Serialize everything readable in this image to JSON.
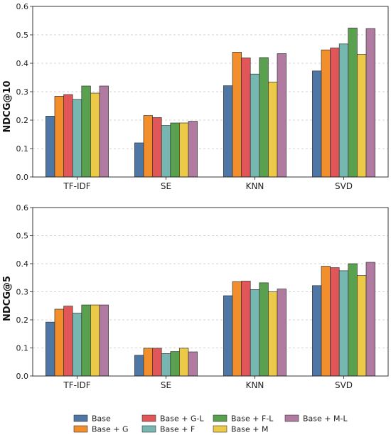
{
  "chart_data": [
    {
      "type": "bar",
      "ylabel": "NDCG@10",
      "xlabel": "",
      "ylim": [
        0,
        0.6
      ],
      "yticks": [
        0.0,
        0.1,
        0.2,
        0.3,
        0.4,
        0.5,
        0.6
      ],
      "grid": "y-dashed",
      "categories": [
        "TF-IDF",
        "SE",
        "KNN",
        "SVD"
      ],
      "series": [
        {
          "name": "Base",
          "color": "#4e77a6",
          "values": [
            0.214,
            0.12,
            0.321,
            0.373
          ]
        },
        {
          "name": "Base + G",
          "color": "#f28e2b",
          "values": [
            0.284,
            0.216,
            0.439,
            0.447
          ]
        },
        {
          "name": "Base + G-L",
          "color": "#e15759",
          "values": [
            0.29,
            0.209,
            0.419,
            0.454
          ]
        },
        {
          "name": "Base + F",
          "color": "#76b7b2",
          "values": [
            0.273,
            0.181,
            0.362,
            0.468
          ]
        },
        {
          "name": "Base + F-L",
          "color": "#59a14f",
          "values": [
            0.32,
            0.19,
            0.42,
            0.524
          ]
        },
        {
          "name": "Base + M",
          "color": "#edc948",
          "values": [
            0.295,
            0.19,
            0.334,
            0.431
          ]
        },
        {
          "name": "Base + M-L",
          "color": "#b07aa1",
          "values": [
            0.32,
            0.196,
            0.434,
            0.522
          ]
        }
      ]
    },
    {
      "type": "bar",
      "ylabel": "NDCG@5",
      "xlabel": "",
      "ylim": [
        0,
        0.6
      ],
      "yticks": [
        0.0,
        0.1,
        0.2,
        0.3,
        0.4,
        0.5,
        0.6
      ],
      "grid": "y-dashed",
      "categories": [
        "TF-IDF",
        "SE",
        "KNN",
        "SVD"
      ],
      "series": [
        {
          "name": "Base",
          "color": "#4e77a6",
          "values": [
            0.192,
            0.074,
            0.286,
            0.322
          ]
        },
        {
          "name": "Base + G",
          "color": "#f28e2b",
          "values": [
            0.238,
            0.099,
            0.336,
            0.391
          ]
        },
        {
          "name": "Base + G-L",
          "color": "#e15759",
          "values": [
            0.249,
            0.099,
            0.338,
            0.386
          ]
        },
        {
          "name": "Base + F",
          "color": "#76b7b2",
          "values": [
            0.224,
            0.08,
            0.308,
            0.375
          ]
        },
        {
          "name": "Base + F-L",
          "color": "#59a14f",
          "values": [
            0.253,
            0.087,
            0.332,
            0.4
          ]
        },
        {
          "name": "Base + M",
          "color": "#edc948",
          "values": [
            0.253,
            0.099,
            0.3,
            0.358
          ]
        },
        {
          "name": "Base + M-L",
          "color": "#b07aa1",
          "values": [
            0.253,
            0.086,
            0.31,
            0.405
          ]
        }
      ]
    }
  ],
  "legend": {
    "position": "bottom-center",
    "items": [
      {
        "label": "Base",
        "color": "#4e77a6"
      },
      {
        "label": "Base + G",
        "color": "#f28e2b"
      },
      {
        "label": "Base + G-L",
        "color": "#e15759"
      },
      {
        "label": "Base + F",
        "color": "#76b7b2"
      },
      {
        "label": "Base + F-L",
        "color": "#59a14f"
      },
      {
        "label": "Base + M",
        "color": "#edc948"
      },
      {
        "label": "Base + M-L",
        "color": "#b07aa1"
      }
    ]
  }
}
